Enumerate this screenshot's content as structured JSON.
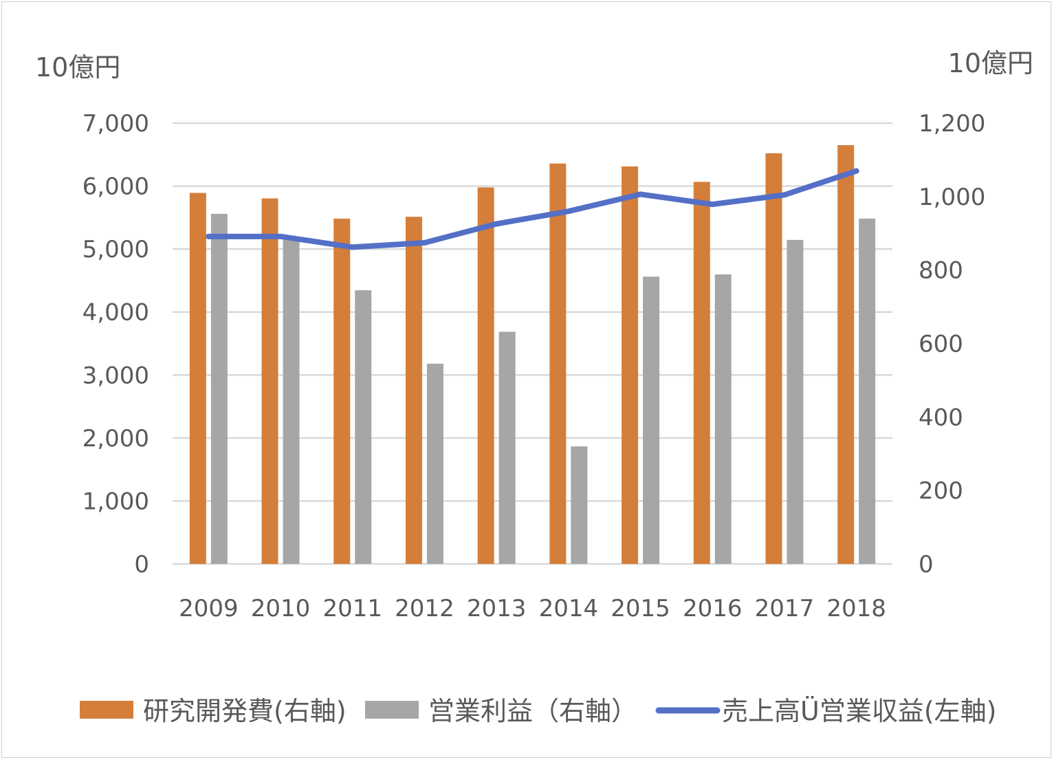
{
  "chart_data": {
    "type": "bar",
    "title": "",
    "left_axis_unit": "10億円",
    "right_axis_unit": "10億円",
    "categories": [
      "2009",
      "2010",
      "2011",
      "2012",
      "2013",
      "2014",
      "2015",
      "2016",
      "2017",
      "2018"
    ],
    "left_axis": {
      "ylim": [
        0,
        7000
      ],
      "ticks": [
        "0",
        "1,000",
        "2,000",
        "3,000",
        "4,000",
        "5,000",
        "6,000",
        "7,000"
      ]
    },
    "right_axis": {
      "ylim": [
        0,
        1200
      ],
      "ticks": [
        "0",
        "200",
        "400",
        "600",
        "800",
        "1,000",
        "1,200"
      ]
    },
    "grid": true,
    "legend_position": "bottom",
    "series": [
      {
        "name": "研究開発費(右軸)",
        "type": "bar",
        "axis": "right",
        "color": "#D47E3A",
        "values": [
          1010,
          995,
          940,
          945,
          1025,
          1090,
          1082,
          1040,
          1118,
          1140
        ]
      },
      {
        "name": "営業利益（右軸）",
        "type": "bar",
        "axis": "right",
        "color": "#A6A6A6",
        "values": [
          953,
          890,
          745,
          545,
          632,
          320,
          782,
          788,
          882,
          940
        ]
      },
      {
        "name": "売上高Ü営業収益(左軸)",
        "type": "line",
        "axis": "left",
        "color": "#5470C6",
        "values": [
          5200,
          5200,
          5030,
          5100,
          5400,
          5600,
          5870,
          5710,
          5860,
          6240
        ]
      }
    ]
  }
}
